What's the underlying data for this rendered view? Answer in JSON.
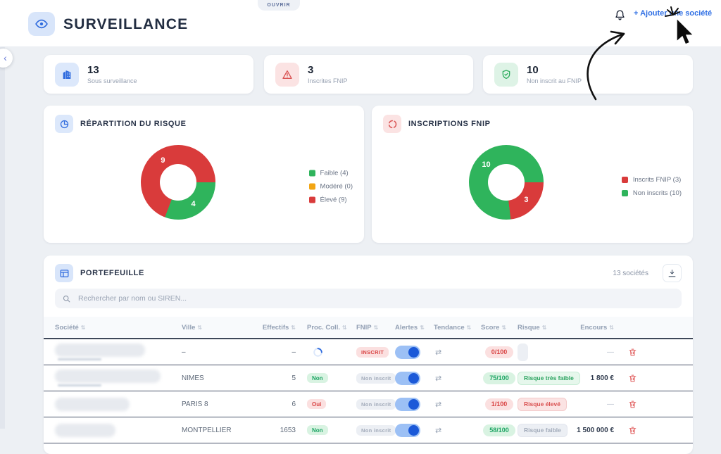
{
  "header": {
    "title": "SURVEILLANCE",
    "tab_label": "OUVRIR",
    "add_society_label": "+ Ajouter une société",
    "collapse_icon": "‹"
  },
  "stats": [
    {
      "icon": "building-icon",
      "value": "13",
      "label": "Sous surveillance",
      "accent": "#2f6bde",
      "icon_bg": "#dce8fb"
    },
    {
      "icon": "alert-triangle-icon",
      "value": "3",
      "label": "Inscrites FNIP",
      "accent": "#d95252",
      "icon_bg": "#fbe3e3"
    },
    {
      "icon": "shield-check-icon",
      "value": "10",
      "label": "Non inscrit au FNIP",
      "accent": "#2fae5f",
      "icon_bg": "#def3e6"
    }
  ],
  "chart_data": [
    {
      "type": "pie",
      "title": "RÉPARTITION DU RISQUE",
      "icon": "pie-chart-icon",
      "icon_color": "#2f6bde",
      "icon_bg": "#dce8fb",
      "donut": true,
      "start_angle_deg": 90,
      "categories": [
        "Faible",
        "Modéré",
        "Élevé"
      ],
      "values": [
        4,
        0,
        9
      ],
      "colors": [
        "#2fb45c",
        "#f2a513",
        "#d93b3b"
      ],
      "slice_labels": [
        "4",
        "",
        "9"
      ],
      "legend": [
        "Faible (4)",
        "Modéré (0)",
        "Élevé (9)"
      ],
      "legend_position": "right"
    },
    {
      "type": "pie",
      "title": "INSCRIPTIONS FNIP",
      "icon": "refresh-icon",
      "icon_color": "#d95252",
      "icon_bg": "#fbe3e3",
      "donut": true,
      "start_angle_deg": 90,
      "categories": [
        "Inscrits FNIP",
        "Non inscrits"
      ],
      "values": [
        3,
        10
      ],
      "colors": [
        "#d93b3b",
        "#2fb45c"
      ],
      "slice_labels": [
        "3",
        "10"
      ],
      "legend": [
        "Inscrits FNIP (3)",
        "Non inscrits (10)"
      ],
      "legend_position": "right"
    }
  ],
  "portfolio": {
    "title": "PORTEFEUILLE",
    "count_label": "13 sociétés",
    "search_placeholder": "Rechercher par nom ou SIREN...",
    "sort_glyph": "⇅",
    "columns": [
      "Société",
      "Ville",
      "Effectifs",
      "Proc. Coll.",
      "FNIP",
      "Alertes",
      "Tendance",
      "Score",
      "Risque",
      "Encours"
    ],
    "rows": [
      {
        "societe_redacted": true,
        "ville": "–",
        "effectifs": "–",
        "proc_coll": {
          "kind": "spinner"
        },
        "fnip": {
          "text": "INSCRIT",
          "style": "red"
        },
        "alertes_on": true,
        "tendance": "⇄",
        "score": {
          "text": "0/100",
          "style": "red"
        },
        "risque": {
          "text": "",
          "style": "empty"
        },
        "encours": "—"
      },
      {
        "societe_redacted": true,
        "ville": "NIMES",
        "effectifs": "5",
        "proc_coll": {
          "kind": "badge",
          "text": "Non",
          "style": "green"
        },
        "fnip": {
          "text": "Non inscrit",
          "style": "gray"
        },
        "alertes_on": true,
        "tendance": "⇄",
        "score": {
          "text": "75/100",
          "style": "green"
        },
        "risque": {
          "text": "Risque très faible",
          "style": "green"
        },
        "encours": "1 800 €"
      },
      {
        "societe_redacted": true,
        "ville": "PARIS 8",
        "effectifs": "6",
        "proc_coll": {
          "kind": "badge",
          "text": "Oui",
          "style": "red"
        },
        "fnip": {
          "text": "Non inscrit",
          "style": "gray"
        },
        "alertes_on": true,
        "tendance": "⇄",
        "score": {
          "text": "1/100",
          "style": "red"
        },
        "risque": {
          "text": "Risque élevé",
          "style": "red"
        },
        "encours": "—"
      },
      {
        "societe_redacted": true,
        "ville": "MONTPELLIER",
        "effectifs": "1653",
        "proc_coll": {
          "kind": "badge",
          "text": "Non",
          "style": "green"
        },
        "fnip": {
          "text": "Non inscrit",
          "style": "gray"
        },
        "alertes_on": true,
        "tendance": "⇄",
        "score": {
          "text": "58/100",
          "style": "green"
        },
        "risque": {
          "text": "Risque faible",
          "style": "muted"
        },
        "encours": "1 500 000 €"
      }
    ]
  }
}
